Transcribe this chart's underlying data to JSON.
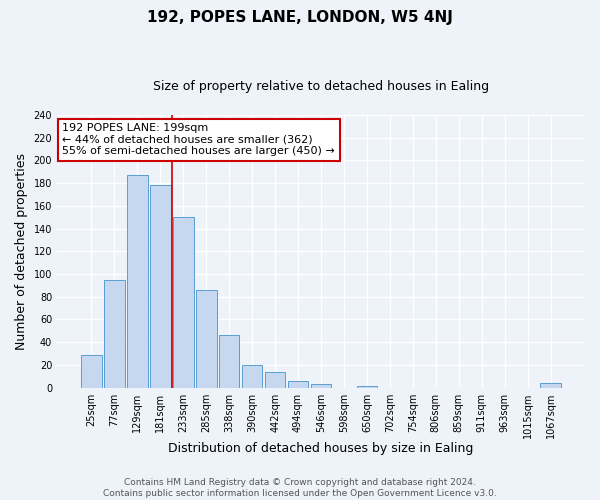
{
  "title": "192, POPES LANE, LONDON, W5 4NJ",
  "subtitle": "Size of property relative to detached houses in Ealing",
  "xlabel": "Distribution of detached houses by size in Ealing",
  "ylabel": "Number of detached properties",
  "bin_labels": [
    "25sqm",
    "77sqm",
    "129sqm",
    "181sqm",
    "233sqm",
    "285sqm",
    "338sqm",
    "390sqm",
    "442sqm",
    "494sqm",
    "546sqm",
    "598sqm",
    "650sqm",
    "702sqm",
    "754sqm",
    "806sqm",
    "859sqm",
    "911sqm",
    "963sqm",
    "1015sqm",
    "1067sqm"
  ],
  "bar_values": [
    29,
    95,
    187,
    178,
    150,
    86,
    46,
    20,
    14,
    6,
    3,
    0,
    1,
    0,
    0,
    0,
    0,
    0,
    0,
    0,
    4
  ],
  "bar_color": "#c5d8f0",
  "bar_edge_color": "#5a9fd4",
  "ylim": [
    0,
    240
  ],
  "yticks": [
    0,
    20,
    40,
    60,
    80,
    100,
    120,
    140,
    160,
    180,
    200,
    220,
    240
  ],
  "property_label": "192 POPES LANE: 199sqm",
  "annotation_line1": "← 44% of detached houses are smaller (362)",
  "annotation_line2": "55% of semi-detached houses are larger (450) →",
  "vline_x": 3.5,
  "vline_color": "#cc0000",
  "annotation_box_color": "#ffffff",
  "annotation_box_edge": "#cc0000",
  "footnote1": "Contains HM Land Registry data © Crown copyright and database right 2024.",
  "footnote2": "Contains public sector information licensed under the Open Government Licence v3.0.",
  "background_color": "#eef2f9",
  "grid_color": "#ffffff",
  "title_fontsize": 11,
  "subtitle_fontsize": 9,
  "axis_label_fontsize": 9,
  "tick_fontsize": 7,
  "annotation_fontsize": 8,
  "footnote_fontsize": 6.5
}
